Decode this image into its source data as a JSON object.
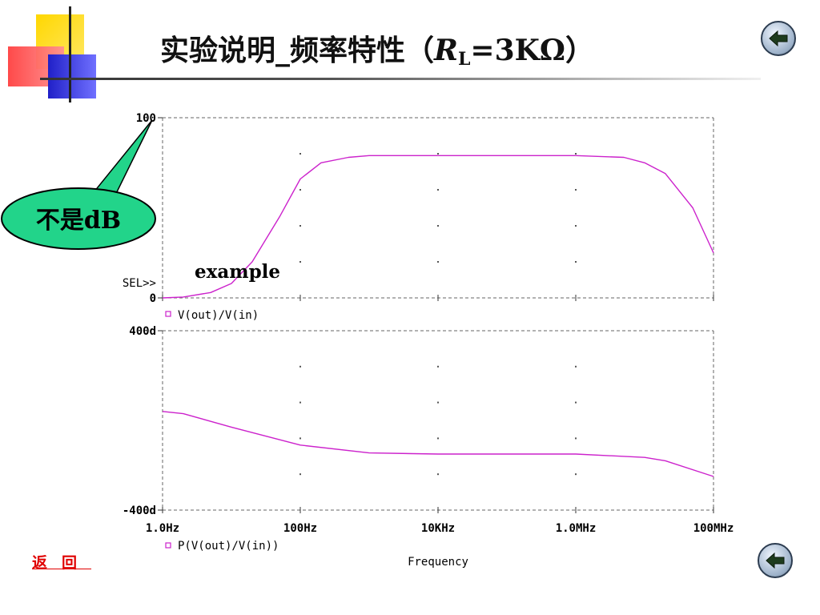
{
  "slide": {
    "title_main": "实验说明_频率特性（",
    "title_r": "R",
    "title_sub": "L",
    "title_rest": "=3KΩ）",
    "back_label": "返回",
    "callout_label": "不是dB",
    "example_label": "example",
    "nav_icon": "back-arrow-icon"
  },
  "chart_data": [
    {
      "type": "line",
      "panel": "top",
      "x_scale": "log",
      "x_range_hz": [
        1,
        100000000
      ],
      "ylim": [
        0,
        100
      ],
      "y_tick_labels": [
        "100",
        "0"
      ],
      "selector_label": "SEL>>",
      "legend": "V(out)/V(in)",
      "color": "#cc22cc",
      "series": [
        {
          "name": "V(out)/V(in)",
          "x": [
            1,
            2,
            5,
            10,
            20,
            50,
            100,
            200,
            500,
            1000,
            2000,
            10000,
            100000,
            1000000,
            5000000,
            10000000,
            20000000,
            50000000,
            100000000
          ],
          "y": [
            0,
            0.5,
            3,
            8,
            20,
            45,
            66,
            75,
            78,
            79,
            79,
            79,
            79,
            79,
            78,
            75,
            69,
            50,
            25
          ]
        }
      ]
    },
    {
      "type": "line",
      "panel": "bottom",
      "x_scale": "log",
      "x_range_hz": [
        1,
        100000000
      ],
      "ylim": [
        -400,
        400
      ],
      "y_tick_labels": [
        "400d",
        "-400d"
      ],
      "legend": "P(V(out)/V(in))",
      "color": "#cc22cc",
      "x_tick_labels": [
        "1.0Hz",
        "100Hz",
        "10KHz",
        "1.0MHz",
        "100MHz"
      ],
      "xlabel": "Frequency",
      "series": [
        {
          "name": "P(V(out)/V(in))",
          "x": [
            1,
            2,
            10,
            100,
            1000,
            10000,
            100000,
            1000000,
            10000000,
            20000000,
            100000000
          ],
          "y": [
            40,
            30,
            -30,
            -110,
            -145,
            -150,
            -150,
            -150,
            -165,
            -180,
            -250
          ]
        }
      ]
    }
  ]
}
